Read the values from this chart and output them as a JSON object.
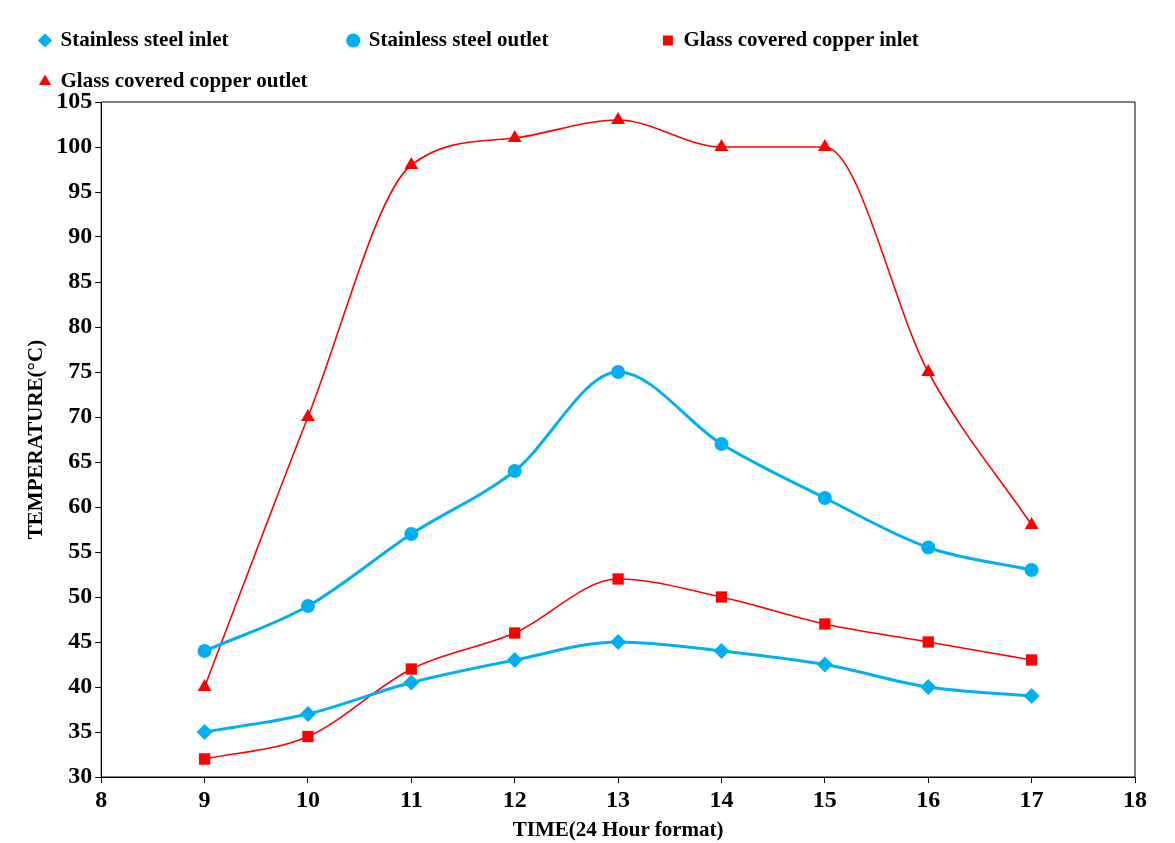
{
  "chart_data": {
    "type": "line",
    "xlabel": "TIME(24 Hour format)",
    "ylabel": "TEMPERATURE(°C)",
    "x": [
      9,
      10,
      11,
      12,
      13,
      14,
      15,
      16,
      17
    ],
    "xlim": [
      8,
      18
    ],
    "xticks": [
      8,
      9,
      10,
      11,
      12,
      13,
      14,
      15,
      16,
      17,
      18
    ],
    "ylim": [
      30,
      105
    ],
    "yticks": [
      30,
      35,
      40,
      45,
      50,
      55,
      60,
      65,
      70,
      75,
      80,
      85,
      90,
      95,
      100,
      105
    ],
    "grid": false,
    "legend": "top",
    "series": [
      {
        "name": "Stainless steel inlet",
        "color": "#00b0f0",
        "marker": "diamond",
        "values": [
          35,
          37,
          40.5,
          43,
          45,
          44,
          42.5,
          40,
          39
        ]
      },
      {
        "name": "Stainless steel outlet",
        "color": "#00b0f0",
        "marker": "circle",
        "values": [
          44,
          49,
          57,
          64,
          75,
          67,
          61,
          55.5,
          53
        ]
      },
      {
        "name": "Glass covered copper inlet",
        "color": "#ff0000",
        "marker": "square",
        "values": [
          32,
          34.5,
          42,
          46,
          52,
          50,
          47,
          45,
          43
        ]
      },
      {
        "name": "Glass covered copper outlet",
        "color": "#ff0000",
        "marker": "triangle",
        "values": [
          40,
          70,
          98,
          101,
          103,
          100,
          100,
          75,
          58
        ]
      }
    ]
  }
}
